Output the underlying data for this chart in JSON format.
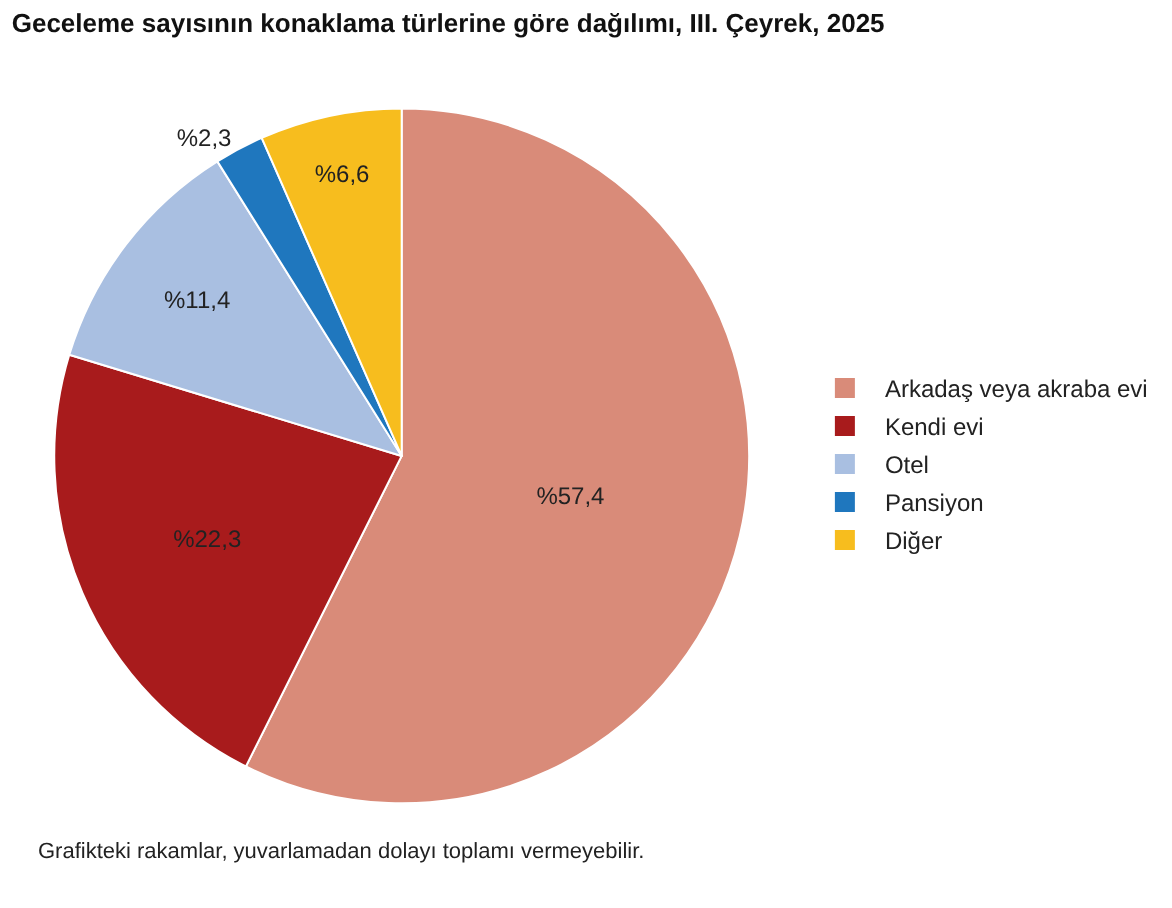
{
  "chart_data": {
    "type": "pie",
    "title": "Geceleme sayısının konaklama türlerine göre dağılımı, III. Çeyrek, 2025",
    "categories": [
      "Arkadaş veya akraba evi",
      "Kendi evi",
      "Otel",
      "Pansiyon",
      "Diğer"
    ],
    "values": [
      57.4,
      22.3,
      11.4,
      2.3,
      6.6
    ],
    "value_labels": [
      "%57,4",
      "%22,3",
      "%11,4",
      "%2,3",
      "%6,6"
    ],
    "colors": [
      "#d98b79",
      "#a81b1c",
      "#a9bfe1",
      "#1f77be",
      "#f7bd1e"
    ],
    "legend": "right",
    "annotations": [
      "Grafikteki rakamlar, yuvarlamadan dolayı toplamı vermeyebilir."
    ]
  }
}
